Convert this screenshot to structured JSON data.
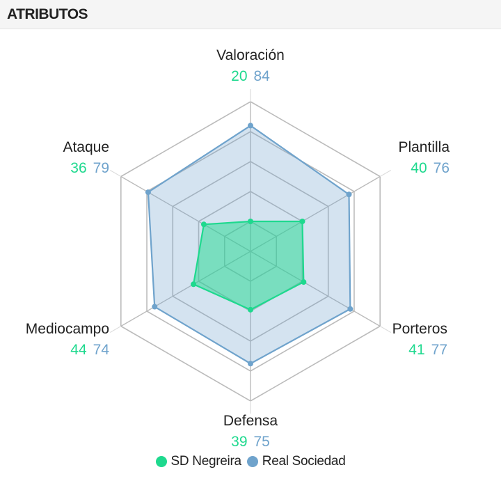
{
  "header": {
    "title": "ATRIBUTOS"
  },
  "colors": {
    "team_a": "#1ed98e",
    "team_b": "#6fa3cc",
    "grid": "#bbbbbb"
  },
  "chart_data": {
    "type": "radar",
    "axes": [
      "Valoración",
      "Plantilla",
      "Porteros",
      "Defensa",
      "Mediocampo",
      "Ataque"
    ],
    "scale": [
      0,
      100
    ],
    "series": [
      {
        "name": "SD Negreira",
        "values": [
          20,
          40,
          41,
          39,
          44,
          36
        ]
      },
      {
        "name": "Real Sociedad",
        "values": [
          84,
          76,
          77,
          75,
          74,
          79
        ]
      }
    ],
    "legend_position": "bottom-center"
  }
}
